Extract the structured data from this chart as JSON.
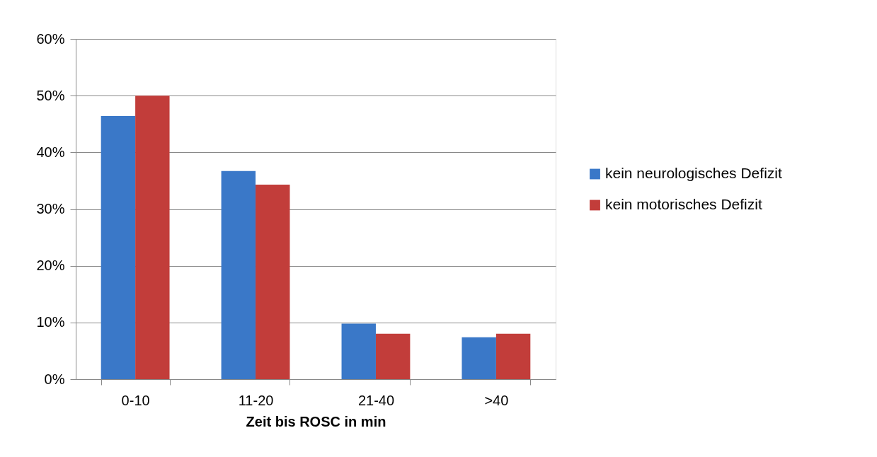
{
  "chart_data": {
    "type": "bar",
    "xlabel": "Zeit bis ROSC in min",
    "categories": [
      "0-10",
      "11-20",
      "21-40",
      ">40"
    ],
    "series": [
      {
        "name": "kein neurologisches Defizit",
        "color": "#3a78c8",
        "values": [
          46.4,
          36.7,
          9.8,
          7.4
        ]
      },
      {
        "name": "kein motorisches Defizit",
        "color": "#c23d3a",
        "values": [
          50.0,
          34.3,
          8.0,
          8.0
        ]
      }
    ],
    "ylim": [
      0,
      60
    ],
    "yticks": [
      {
        "value": 0,
        "label": "0%"
      },
      {
        "value": 10,
        "label": "10%"
      },
      {
        "value": 20,
        "label": "20%"
      },
      {
        "value": 30,
        "label": "30%"
      },
      {
        "value": 40,
        "label": "40%"
      },
      {
        "value": 50,
        "label": "50%"
      },
      {
        "value": 60,
        "label": "60%"
      }
    ],
    "grid": "y",
    "legend": "right"
  }
}
